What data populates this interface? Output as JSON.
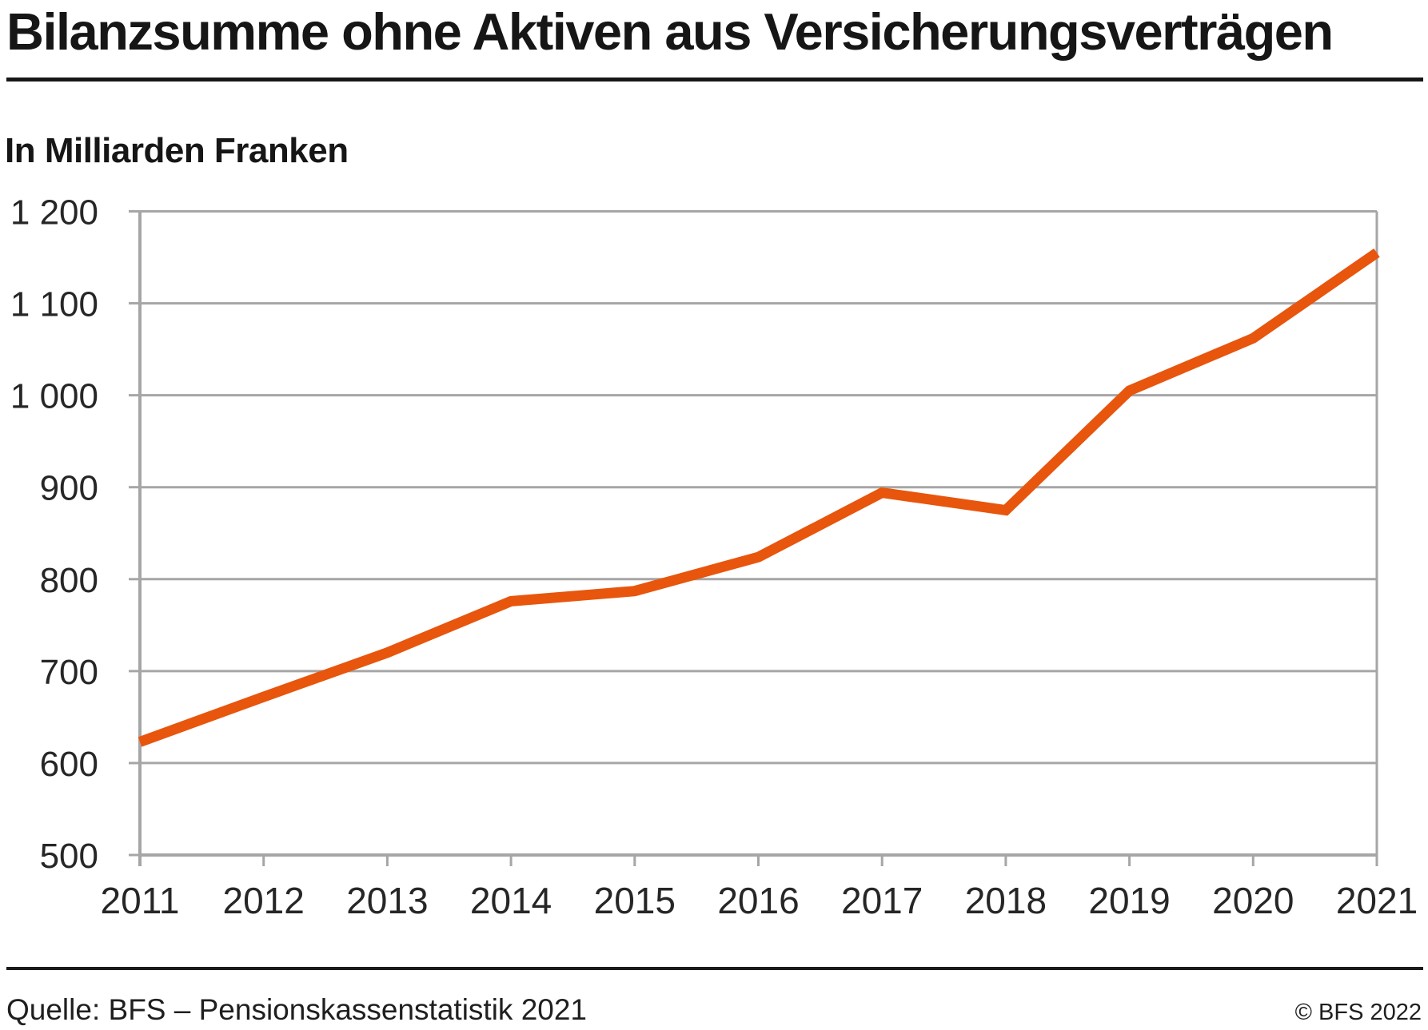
{
  "header": {
    "title": "Bilanzsumme ohne Aktiven aus Versicherungsverträgen",
    "unit_label": "In Milliarden Franken"
  },
  "footer": {
    "source": "Quelle: BFS – Pensionskassenstatistik 2021",
    "copyright": "© BFS 2022"
  },
  "chart_data": {
    "type": "line",
    "title": "Bilanzsumme ohne Aktiven aus Versicherungsverträgen",
    "subtitle": "In Milliarden Franken",
    "xlabel": "",
    "ylabel": "In Milliarden Franken",
    "categories": [
      "2011",
      "2012",
      "2013",
      "2014",
      "2015",
      "2016",
      "2017",
      "2018",
      "2019",
      "2020",
      "2021"
    ],
    "values": [
      623,
      672,
      720,
      776,
      787,
      824,
      894,
      875,
      1005,
      1062,
      1155
    ],
    "ylim": [
      500,
      1200
    ],
    "ytick_step": 100,
    "y_tick_labels": [
      "500",
      "600",
      "700",
      "800",
      "900",
      "1 000",
      "1 100",
      "1 200"
    ],
    "grid": true,
    "legend": "none",
    "colors": {
      "line": "#e8550d",
      "grid": "#a6a6a6",
      "tick_text": "#262626"
    }
  }
}
